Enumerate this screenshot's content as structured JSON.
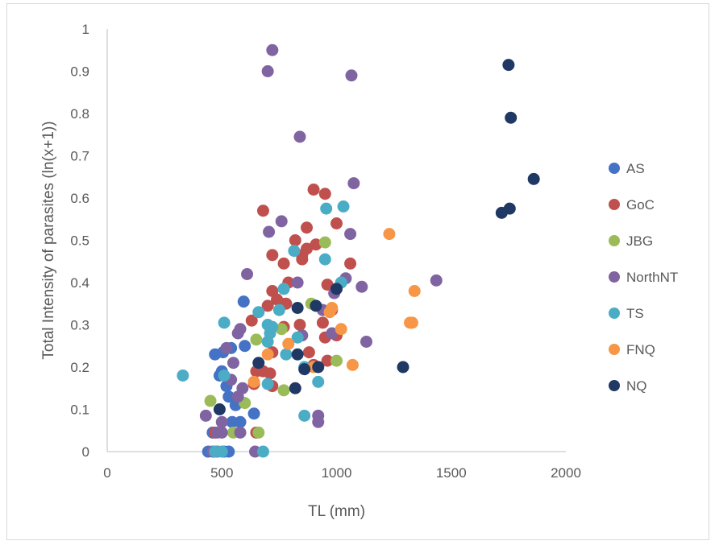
{
  "chart_data": {
    "type": "scatter",
    "title": "",
    "xlabel": "TL (mm)",
    "ylabel": "Total Intensity of parasites (ln(x+1))",
    "xlim": [
      0,
      2000
    ],
    "ylim": [
      0,
      1
    ],
    "xticks": [
      "0",
      "500",
      "1000",
      "1500",
      "2000"
    ],
    "yticks": [
      "0",
      "0.1",
      "0.2",
      "0.3",
      "0.4",
      "0.5",
      "0.6",
      "0.7",
      "0.8",
      "0.9",
      "1"
    ],
    "grid": false,
    "legend_position": "right",
    "series": [
      {
        "name": "AS",
        "color": "#4472C4",
        "points": [
          [
            595,
            0.355
          ],
          [
            470,
            0.23
          ],
          [
            505,
            0.235
          ],
          [
            540,
            0.245
          ],
          [
            520,
            0.155
          ],
          [
            560,
            0.11
          ],
          [
            530,
            0.13
          ],
          [
            580,
            0.07
          ],
          [
            545,
            0.07
          ],
          [
            460,
            0.045
          ],
          [
            440,
            0.0
          ],
          [
            470,
            0.0
          ],
          [
            510,
            0.0
          ],
          [
            530,
            0.0
          ],
          [
            640,
            0.09
          ],
          [
            600,
            0.25
          ],
          [
            500,
            0.19
          ],
          [
            490,
            0.18
          ]
        ]
      },
      {
        "name": "GoC",
        "color": "#C0504D",
        "points": [
          [
            680,
            0.57
          ],
          [
            900,
            0.62
          ],
          [
            950,
            0.61
          ],
          [
            870,
            0.53
          ],
          [
            910,
            0.49
          ],
          [
            820,
            0.5
          ],
          [
            850,
            0.465
          ],
          [
            720,
            0.465
          ],
          [
            770,
            0.445
          ],
          [
            850,
            0.455
          ],
          [
            1060,
            0.445
          ],
          [
            870,
            0.48
          ],
          [
            1000,
            0.54
          ],
          [
            960,
            0.395
          ],
          [
            790,
            0.4
          ],
          [
            720,
            0.38
          ],
          [
            740,
            0.36
          ],
          [
            760,
            0.35
          ],
          [
            700,
            0.345
          ],
          [
            780,
            0.35
          ],
          [
            980,
            0.335
          ],
          [
            940,
            0.305
          ],
          [
            840,
            0.3
          ],
          [
            770,
            0.295
          ],
          [
            1000,
            0.275
          ],
          [
            950,
            0.27
          ],
          [
            880,
            0.235
          ],
          [
            720,
            0.235
          ],
          [
            960,
            0.215
          ],
          [
            900,
            0.205
          ],
          [
            650,
            0.19
          ],
          [
            680,
            0.19
          ],
          [
            710,
            0.185
          ],
          [
            720,
            0.155
          ],
          [
            640,
            0.16
          ],
          [
            650,
            0.045
          ],
          [
            470,
            0.045
          ],
          [
            630,
            0.31
          ]
        ]
      },
      {
        "name": "JBG",
        "color": "#9BBB59",
        "points": [
          [
            950,
            0.495
          ],
          [
            890,
            0.35
          ],
          [
            760,
            0.29
          ],
          [
            650,
            0.265
          ],
          [
            1000,
            0.215
          ],
          [
            600,
            0.115
          ],
          [
            450,
            0.12
          ],
          [
            770,
            0.145
          ],
          [
            660,
            0.045
          ],
          [
            550,
            0.045
          ]
        ]
      },
      {
        "name": "NorthNT",
        "color": "#8064A2",
        "points": [
          [
            720,
            0.95
          ],
          [
            700,
            0.9
          ],
          [
            1065,
            0.89
          ],
          [
            840,
            0.745
          ],
          [
            1075,
            0.635
          ],
          [
            760,
            0.545
          ],
          [
            705,
            0.52
          ],
          [
            1060,
            0.515
          ],
          [
            610,
            0.42
          ],
          [
            830,
            0.4
          ],
          [
            1040,
            0.41
          ],
          [
            1110,
            0.39
          ],
          [
            1435,
            0.405
          ],
          [
            990,
            0.375
          ],
          [
            940,
            0.335
          ],
          [
            580,
            0.29
          ],
          [
            570,
            0.28
          ],
          [
            980,
            0.28
          ],
          [
            850,
            0.275
          ],
          [
            1130,
            0.26
          ],
          [
            520,
            0.245
          ],
          [
            550,
            0.21
          ],
          [
            540,
            0.17
          ],
          [
            590,
            0.15
          ],
          [
            570,
            0.13
          ],
          [
            430,
            0.085
          ],
          [
            920,
            0.085
          ],
          [
            920,
            0.07
          ],
          [
            500,
            0.07
          ],
          [
            480,
            0.045
          ],
          [
            500,
            0.045
          ],
          [
            580,
            0.045
          ],
          [
            645,
            0.0
          ],
          [
            460,
            0.0
          ],
          [
            480,
            0.0
          ]
        ]
      },
      {
        "name": "TS",
        "color": "#4BACC6",
        "points": [
          [
            1030,
            0.58
          ],
          [
            955,
            0.575
          ],
          [
            815,
            0.475
          ],
          [
            950,
            0.455
          ],
          [
            1020,
            0.4
          ],
          [
            770,
            0.385
          ],
          [
            660,
            0.33
          ],
          [
            750,
            0.335
          ],
          [
            700,
            0.3
          ],
          [
            510,
            0.305
          ],
          [
            720,
            0.295
          ],
          [
            710,
            0.28
          ],
          [
            700,
            0.26
          ],
          [
            780,
            0.23
          ],
          [
            830,
            0.27
          ],
          [
            920,
            0.165
          ],
          [
            700,
            0.16
          ],
          [
            860,
            0.2
          ],
          [
            330,
            0.18
          ],
          [
            510,
            0.18
          ],
          [
            860,
            0.085
          ],
          [
            680,
            0.0
          ],
          [
            470,
            0.0
          ],
          [
            500,
            0.0
          ]
        ]
      },
      {
        "name": "FNQ",
        "color": "#F79646",
        "points": [
          [
            1230,
            0.515
          ],
          [
            1340,
            0.38
          ],
          [
            1320,
            0.305
          ],
          [
            1330,
            0.305
          ],
          [
            980,
            0.34
          ],
          [
            970,
            0.33
          ],
          [
            1020,
            0.29
          ],
          [
            790,
            0.255
          ],
          [
            700,
            0.23
          ],
          [
            1070,
            0.205
          ],
          [
            900,
            0.2
          ],
          [
            640,
            0.165
          ]
        ]
      },
      {
        "name": "NQ",
        "color": "#1F3864",
        "points": [
          [
            1750,
            0.915
          ],
          [
            1760,
            0.79
          ],
          [
            1860,
            0.645
          ],
          [
            1720,
            0.565
          ],
          [
            1755,
            0.575
          ],
          [
            1000,
            0.385
          ],
          [
            910,
            0.345
          ],
          [
            830,
            0.34
          ],
          [
            830,
            0.23
          ],
          [
            860,
            0.195
          ],
          [
            920,
            0.2
          ],
          [
            1290,
            0.2
          ],
          [
            660,
            0.21
          ],
          [
            820,
            0.15
          ],
          [
            490,
            0.1
          ]
        ]
      }
    ]
  }
}
